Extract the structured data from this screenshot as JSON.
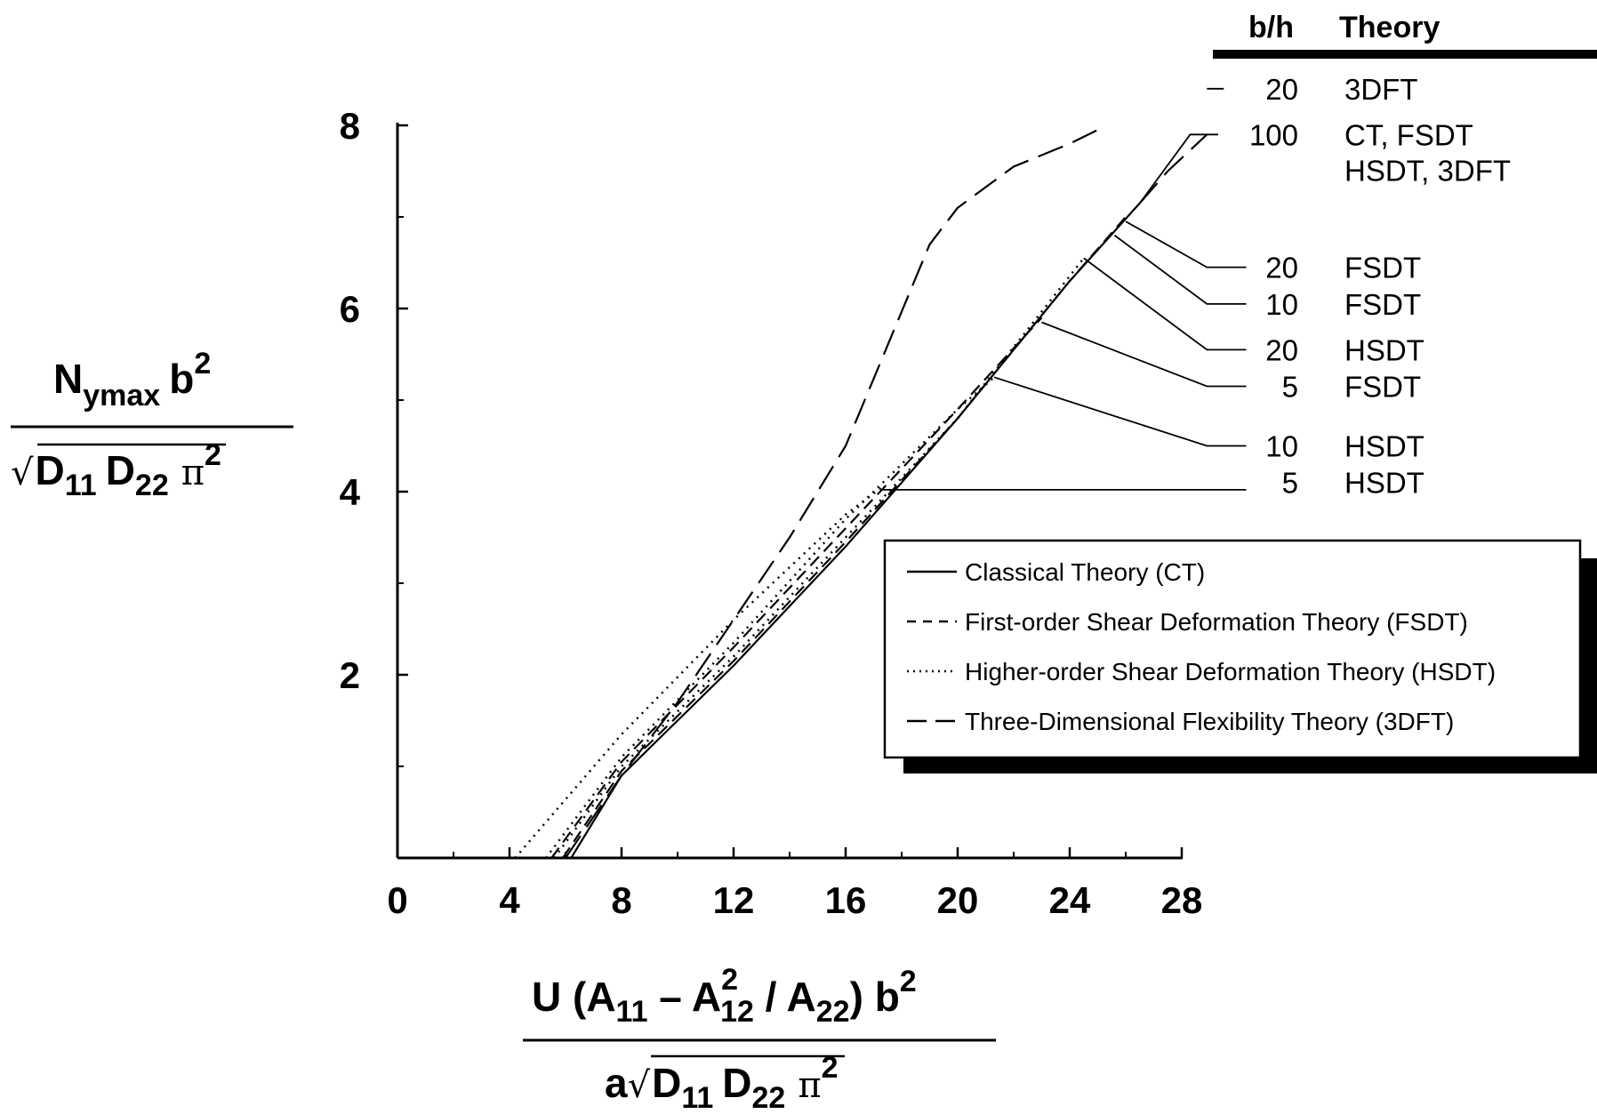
{
  "chart_data": {
    "type": "line",
    "xlim": [
      0,
      28
    ],
    "ylim": [
      0,
      8
    ],
    "x_ticks": [
      "0",
      "4",
      "8",
      "12",
      "16",
      "20",
      "24",
      "28"
    ],
    "y_ticks": [
      "2",
      "4",
      "6",
      "8"
    ],
    "ylabel": {
      "num_main": "N",
      "num_sub": "ymax",
      "num_b": "b",
      "num_sup": "2",
      "den_sqrt": "√",
      "den_d1": "D",
      "den_d1_sub": "11",
      "den_d2": "D",
      "den_d2_sub": "22",
      "den_pi": "π",
      "den_pi_sup": "2"
    },
    "xlabel": {
      "num_u": "U (A",
      "num_a11_sub": "11",
      "num_minus": " – A",
      "num_a12_sup": "2",
      "num_a12_sub": "12",
      "num_div": " / A",
      "num_a22_sub": "22",
      "num_close": ") b",
      "num_b_sup": "2",
      "den_a": "a",
      "den_sqrt": "√",
      "den_d1": "D",
      "den_d1_sub": "11",
      "den_d2": "D",
      "den_d2_sub": "22",
      "den_pi": "π",
      "den_pi_sup": "2"
    },
    "table_header": {
      "bh": "b/h",
      "theory": "Theory"
    },
    "annotations": [
      {
        "bh": "20",
        "theory": "3DFT"
      },
      {
        "bh": "100",
        "theory": "CT, FSDT",
        "theory2": "HSDT, 3DFT"
      },
      {
        "bh": "20",
        "theory": "FSDT"
      },
      {
        "bh": "10",
        "theory": "FSDT"
      },
      {
        "bh": "20",
        "theory": "HSDT"
      },
      {
        "bh": "5",
        "theory": "FSDT"
      },
      {
        "bh": "10",
        "theory": "HSDT"
      },
      {
        "bh": "5",
        "theory": "HSDT"
      }
    ],
    "legend": {
      "placement": "lower-right",
      "items": [
        {
          "label": "Classical Theory (CT)",
          "style": "solid"
        },
        {
          "label": "First-order Shear Deformation Theory (FSDT)",
          "style": "dashed"
        },
        {
          "label": "Higher-order Shear Deformation Theory (HSDT)",
          "style": "dotted"
        },
        {
          "label": "Three-Dimensional Flexibility Theory (3DFT)",
          "style": "longdash"
        }
      ]
    },
    "series": [
      {
        "style": "solid",
        "x": [
          6.2,
          8.0,
          12.0,
          16.0,
          20.0,
          24.0,
          26.5
        ],
        "y": [
          0.0,
          0.9,
          2.1,
          3.4,
          4.8,
          6.3,
          7.15
        ]
      },
      {
        "style": "longdash",
        "x": [
          6.0,
          8.0,
          10.0,
          12.0,
          14.0,
          16.0,
          17.5,
          19.0,
          20.0,
          22.0,
          24.0,
          25.0
        ],
        "y": [
          0.0,
          0.9,
          1.7,
          2.6,
          3.5,
          4.5,
          5.6,
          6.7,
          7.1,
          7.55,
          7.8,
          7.95
        ]
      },
      {
        "style": "longdash",
        "x": [
          26.5,
          27.5,
          28.9
        ],
        "y": [
          7.15,
          7.5,
          7.9
        ]
      },
      {
        "style": "dashed",
        "x": [
          5.9,
          8.0,
          12.0,
          16.0,
          20.0,
          24.0,
          26.0
        ],
        "y": [
          0.0,
          0.95,
          2.15,
          3.45,
          4.8,
          6.3,
          7.0
        ]
      },
      {
        "style": "dashed",
        "x": [
          5.5,
          8.0,
          12.0,
          16.0,
          20.0,
          23.0
        ],
        "y": [
          0.0,
          1.05,
          2.3,
          3.6,
          4.9,
          5.9
        ]
      },
      {
        "style": "dotted",
        "x": [
          5.6,
          8.0,
          12.0,
          16.0,
          20.0,
          24.5
        ],
        "y": [
          0.0,
          1.0,
          2.2,
          3.5,
          4.8,
          6.55
        ]
      },
      {
        "style": "dotted",
        "x": [
          4.2,
          8.0,
          12.0,
          16.0,
          17.3
        ],
        "y": [
          0.0,
          1.35,
          2.6,
          3.75,
          4.05
        ]
      },
      {
        "style": "dotted",
        "x": [
          5.3,
          8.0,
          12.0,
          16.0,
          20.0,
          21.3
        ],
        "y": [
          0.0,
          1.1,
          2.35,
          3.7,
          4.9,
          5.25
        ]
      }
    ],
    "leaders": [
      {
        "x": [
          28.9,
          29.5
        ],
        "y": [
          8.4,
          8.4
        ]
      },
      {
        "x": [
          26.5,
          28.3,
          29.3
        ],
        "y": [
          7.15,
          7.9,
          7.9
        ]
      },
      {
        "x": [
          26.0,
          28.9,
          30.3
        ],
        "y": [
          6.95,
          6.45,
          6.45
        ]
      },
      {
        "x": [
          25.6,
          28.9,
          30.3
        ],
        "y": [
          6.8,
          6.05,
          6.05
        ]
      },
      {
        "x": [
          24.5,
          28.9,
          30.3
        ],
        "y": [
          6.55,
          5.55,
          5.55
        ]
      },
      {
        "x": [
          23.0,
          28.9,
          30.3
        ],
        "y": [
          5.85,
          5.15,
          5.15
        ]
      },
      {
        "x": [
          21.3,
          28.9,
          30.3
        ],
        "y": [
          5.25,
          4.5,
          4.5
        ]
      },
      {
        "x": [
          17.3,
          30.3
        ],
        "y": [
          4.02,
          4.02
        ]
      }
    ]
  }
}
